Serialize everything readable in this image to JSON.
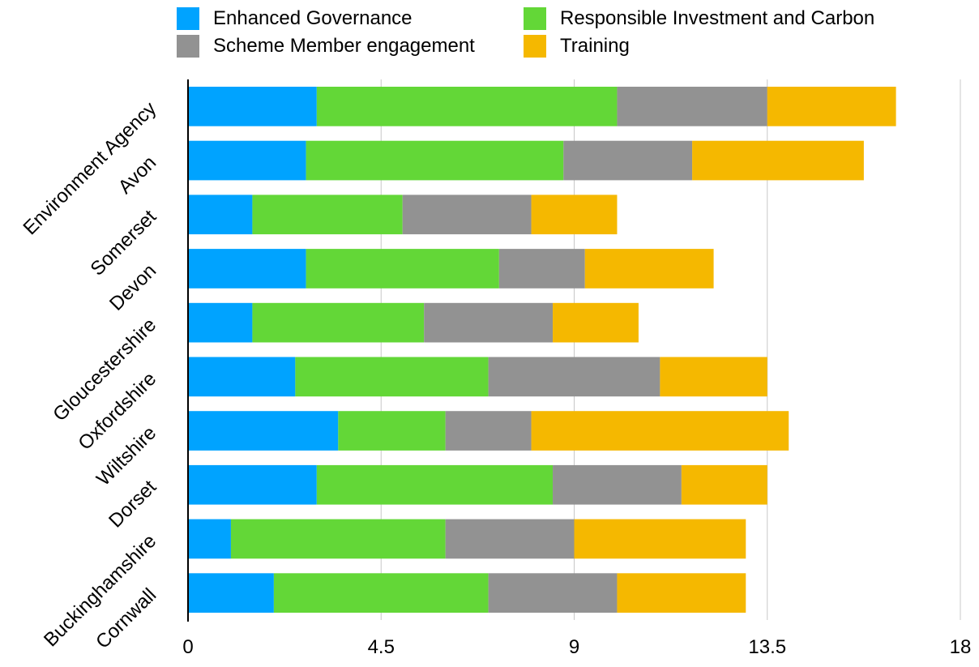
{
  "chart_data": {
    "type": "bar",
    "orientation": "horizontal",
    "stacked": true,
    "categories": [
      "Environment Agency",
      "Avon",
      "Somerset",
      "Devon",
      "Gloucestershire",
      "Oxfordshire",
      "Wiltshire",
      "Dorset",
      "Buckinghamshire",
      "Cornwall"
    ],
    "series": [
      {
        "name": "Enhanced Governance",
        "color": "#00A3FF",
        "values": [
          3,
          2.75,
          1.5,
          2.75,
          1.5,
          2.5,
          3.5,
          3,
          1,
          2
        ]
      },
      {
        "name": "Responsible Investment and Carbon",
        "color": "#63D737",
        "values": [
          7,
          6,
          3.5,
          4.5,
          4,
          4.5,
          2.5,
          5.5,
          5,
          5
        ]
      },
      {
        "name": "Scheme Member engagement",
        "color": "#929292",
        "values": [
          3.5,
          3,
          3,
          2,
          3,
          4,
          2,
          3,
          3,
          3
        ]
      },
      {
        "name": "Training",
        "color": "#F5B800",
        "values": [
          3,
          4,
          2,
          3,
          2,
          2.5,
          6,
          2,
          4,
          3
        ]
      }
    ],
    "xlim": [
      0,
      18
    ],
    "xticks": [
      "0",
      "4.5",
      "9",
      "13.5",
      "18"
    ],
    "grid": true,
    "legend_position": "top",
    "title": "",
    "xlabel": "",
    "ylabel": ""
  }
}
